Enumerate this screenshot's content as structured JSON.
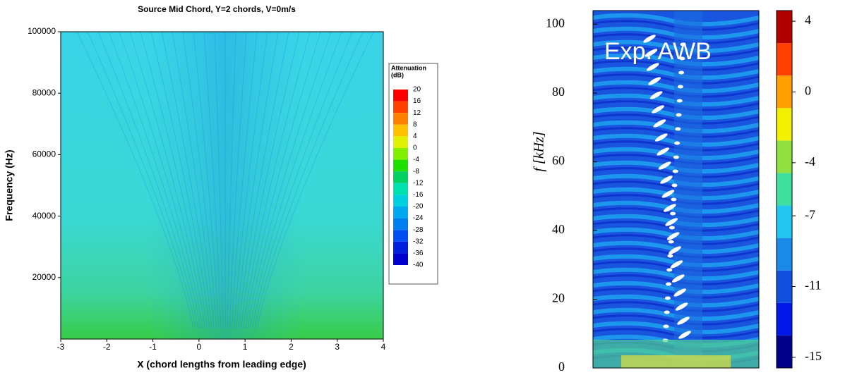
{
  "chart_data": [
    {
      "type": "contour",
      "title": "Source Mid Chord, Y=2 chords, V=0m/s",
      "x_label": "X (chord lengths from leading edge)",
      "y_label": "Frequency (Hz)",
      "xlim": [
        -3,
        4
      ],
      "xticks": [
        -3,
        -2,
        -1,
        0,
        1,
        2,
        3,
        4
      ],
      "ylim": [
        0,
        100000
      ],
      "yticks": [
        20000,
        40000,
        60000,
        80000,
        100000
      ],
      "colorbar_title": [
        "Attenuation",
        "(dB)"
      ],
      "colorbar_levels": [
        20,
        16,
        12,
        8,
        4,
        0,
        -4,
        -8,
        -12,
        -16,
        -20,
        -24,
        -28,
        -32,
        -36,
        -40
      ],
      "colorbar_colors": [
        "#ff0000",
        "#ff4000",
        "#ff8000",
        "#ffc000",
        "#e0f000",
        "#80f000",
        "#20e000",
        "#00d060",
        "#00e0b0",
        "#00d0e0",
        "#00a8f0",
        "#0080f0",
        "#0050f0",
        "#0020e0",
        "#0000d0"
      ]
    },
    {
      "type": "contour",
      "annotation": "Exp. AWB",
      "y_label": "f [kHz]",
      "ylim": [
        0,
        104
      ],
      "yticks": [
        0,
        20,
        40,
        60,
        80,
        100
      ],
      "clim": [
        -15.6,
        4.6
      ],
      "colorbar_ticks": [
        4,
        0,
        -4,
        -7,
        -11,
        -15
      ],
      "colorbar_colors": [
        "#00008c",
        "#0018e8",
        "#1050e0",
        "#1a8ae8",
        "#20c8f0",
        "#40e0a0",
        "#90e040",
        "#f0f000",
        "#ffa000",
        "#ff4000",
        "#b00000"
      ]
    }
  ]
}
